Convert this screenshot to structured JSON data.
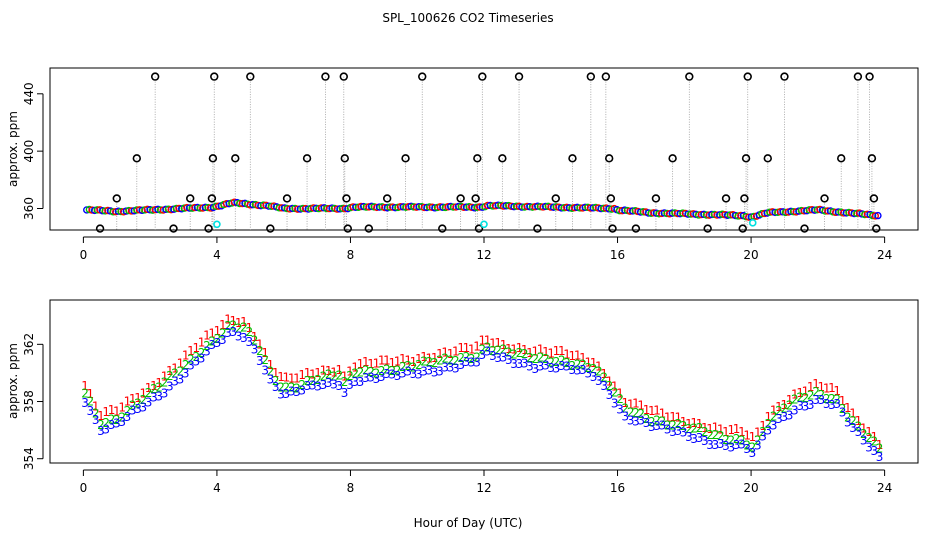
{
  "figure": {
    "title": "SPL_100626  CO2 Timeseries",
    "xlabel": "Hour of Day (UTC)"
  },
  "colors": {
    "series1": "#ff0000",
    "series2": "#00c000",
    "series3": "#0000ff",
    "black_points": "#000000",
    "cyan_points": "#00e0e0",
    "drop_lines": "#999999"
  },
  "chart_data": [
    {
      "type": "scatter",
      "panel": "top",
      "title": "",
      "xlabel": "",
      "ylabel": "approx. ppm",
      "xlim": [
        -1,
        25
      ],
      "ylim": [
        345,
        458
      ],
      "xticks": [
        0,
        4,
        8,
        12,
        16,
        20,
        24
      ],
      "yticks": [
        360,
        400,
        440
      ],
      "grid": false,
      "legend": "none",
      "series": [
        {
          "role": "baseline",
          "x_start": 0.1,
          "x_end": 23.8,
          "y_curve": [
            [
              0.1,
              359
            ],
            [
              1,
              358
            ],
            [
              2,
              359
            ],
            [
              3,
              360
            ],
            [
              3.9,
              361
            ],
            [
              4.5,
              364
            ],
            [
              5.5,
              362
            ],
            [
              6,
              360
            ],
            [
              7.8,
              360
            ],
            [
              8.1,
              361
            ],
            [
              11.9,
              361
            ],
            [
              12.1,
              362
            ],
            [
              15.9,
              360
            ],
            [
              16,
              359
            ],
            [
              17,
              357
            ],
            [
              19.8,
              355
            ],
            [
              20,
              354
            ],
            [
              20.5,
              357
            ],
            [
              22,
              359
            ],
            [
              23.8,
              355
            ]
          ]
        },
        {
          "role": "black_excursions",
          "points": [
            [
              0.5,
              346
            ],
            [
              1.0,
              367
            ],
            [
              1.6,
              395
            ],
            [
              2.15,
              452
            ],
            [
              2.7,
              346
            ],
            [
              3.2,
              367
            ],
            [
              3.75,
              346
            ],
            [
              3.85,
              367
            ],
            [
              3.88,
              395
            ],
            [
              3.92,
              452
            ],
            [
              4.55,
              395
            ],
            [
              5.0,
              452
            ],
            [
              5.6,
              346
            ],
            [
              6.1,
              367
            ],
            [
              6.7,
              395
            ],
            [
              7.25,
              452
            ],
            [
              7.8,
              452
            ],
            [
              7.83,
              395
            ],
            [
              7.88,
              367
            ],
            [
              7.92,
              346
            ],
            [
              8.55,
              346
            ],
            [
              9.1,
              367
            ],
            [
              9.65,
              395
            ],
            [
              10.15,
              452
            ],
            [
              10.75,
              346
            ],
            [
              11.3,
              367
            ],
            [
              11.75,
              367
            ],
            [
              11.8,
              395
            ],
            [
              11.85,
              346
            ],
            [
              11.95,
              452
            ],
            [
              12.55,
              395
            ],
            [
              13.05,
              452
            ],
            [
              13.6,
              346
            ],
            [
              14.15,
              367
            ],
            [
              14.65,
              395
            ],
            [
              15.2,
              452
            ],
            [
              15.65,
              452
            ],
            [
              15.75,
              395
            ],
            [
              15.8,
              367
            ],
            [
              15.85,
              346
            ],
            [
              16.55,
              346
            ],
            [
              17.15,
              367
            ],
            [
              17.65,
              395
            ],
            [
              18.15,
              452
            ],
            [
              18.7,
              346
            ],
            [
              19.25,
              367
            ],
            [
              19.75,
              346
            ],
            [
              19.8,
              367
            ],
            [
              19.85,
              395
            ],
            [
              19.9,
              452
            ],
            [
              20.5,
              395
            ],
            [
              21.0,
              452
            ],
            [
              21.6,
              346
            ],
            [
              22.2,
              367
            ],
            [
              22.7,
              395
            ],
            [
              23.2,
              452
            ],
            [
              23.55,
              452
            ],
            [
              23.62,
              395
            ],
            [
              23.68,
              367
            ],
            [
              23.75,
              346
            ]
          ]
        },
        {
          "role": "cyan_dips",
          "points": [
            [
              4.0,
              349
            ],
            [
              12.0,
              349
            ],
            [
              20.05,
              350
            ]
          ]
        }
      ]
    },
    {
      "type": "scatter",
      "panel": "bottom",
      "title": "",
      "xlabel": "Hour of Day (UTC)",
      "ylabel": "approx. ppm",
      "xlim": [
        -1,
        25
      ],
      "ylim": [
        353.7,
        365.1
      ],
      "xticks": [
        0,
        4,
        8,
        12,
        16,
        20,
        24
      ],
      "yticks": [
        354,
        358,
        362
      ],
      "grid": false,
      "legend": "none",
      "point_symbols": [
        "1",
        "2",
        "3"
      ],
      "series_offsets": [
        1.0,
        0.5,
        0.0
      ],
      "series": [
        {
          "symbol": "3",
          "x_start": 0.05,
          "x_end": 23.85,
          "curve": [
            [
              0.05,
              358.1
            ],
            [
              0.5,
              356.0
            ],
            [
              1.0,
              356.3
            ],
            [
              1.5,
              357.2
            ],
            [
              2.0,
              358.0
            ],
            [
              2.5,
              358.9
            ],
            [
              3.0,
              359.9
            ],
            [
              3.5,
              361.0
            ],
            [
              4.0,
              362.0
            ],
            [
              4.4,
              362.8
            ],
            [
              4.8,
              362.6
            ],
            [
              5.2,
              361.5
            ],
            [
              5.6,
              359.5
            ],
            [
              6.0,
              358.4
            ],
            [
              6.5,
              358.7
            ],
            [
              7.0,
              359.1
            ],
            [
              7.7,
              359.3
            ],
            [
              7.8,
              358.6
            ],
            [
              8.1,
              359.5
            ],
            [
              9.0,
              359.7
            ],
            [
              10.0,
              360.0
            ],
            [
              11.0,
              360.4
            ],
            [
              11.9,
              360.8
            ],
            [
              12.0,
              361.4
            ],
            [
              12.5,
              361.0
            ],
            [
              13.5,
              360.5
            ],
            [
              14.5,
              360.3
            ],
            [
              15.3,
              359.8
            ],
            [
              15.8,
              358.5
            ],
            [
              16.2,
              357.0
            ],
            [
              17.0,
              356.3
            ],
            [
              17.5,
              356.0
            ],
            [
              18.5,
              355.4
            ],
            [
              19.0,
              355.0
            ],
            [
              19.8,
              354.8
            ],
            [
              20.1,
              354.3
            ],
            [
              20.5,
              356.0
            ],
            [
              21.0,
              357.0
            ],
            [
              21.5,
              357.7
            ],
            [
              22.0,
              358.1
            ],
            [
              22.6,
              357.6
            ],
            [
              23.0,
              356.2
            ],
            [
              23.5,
              355.0
            ],
            [
              23.85,
              354.1
            ]
          ]
        }
      ]
    }
  ]
}
